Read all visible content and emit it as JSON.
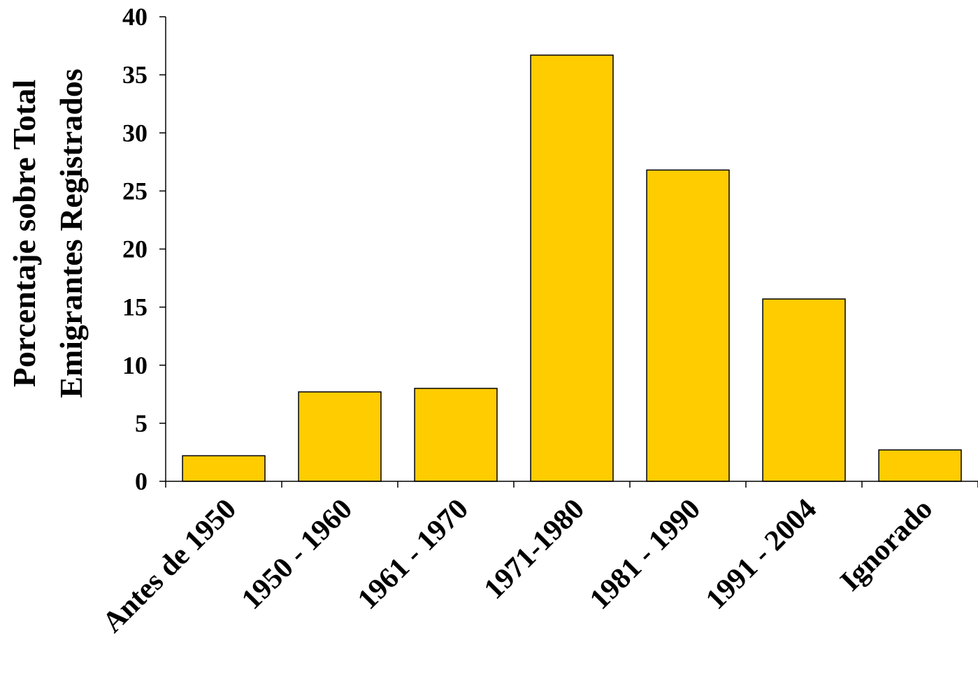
{
  "chart_data": {
    "type": "bar",
    "title": "",
    "xlabel": "",
    "ylabel_lines": [
      "Porcentaje sobre Total",
      "Emigrantes Registrados"
    ],
    "categories": [
      "Antes de 1950",
      "1950 - 1960",
      "1961 - 1970",
      "1971-1980",
      "1981 - 1990",
      "1991 - 2004",
      "Ignorado"
    ],
    "values": [
      2.2,
      7.7,
      8.0,
      36.7,
      26.8,
      15.7,
      2.7
    ],
    "ylim": [
      0,
      40
    ],
    "yticks": [
      0,
      5,
      10,
      15,
      20,
      25,
      30,
      35,
      40
    ],
    "grid": false,
    "legend": "none",
    "bar_color": "#FFCC00",
    "bar_edge_color": "#000000"
  }
}
